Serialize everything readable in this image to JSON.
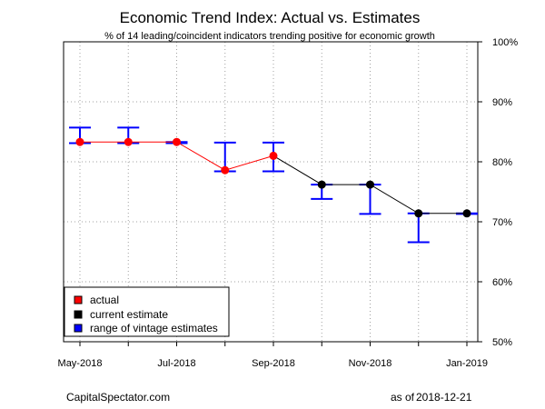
{
  "chart_data": {
    "type": "line",
    "title": "Economic Trend Index: Actual vs. Estimates",
    "subtitle": "% of 14 leading/coincident indicators trending positive for economic growth",
    "x": [
      "2018-05",
      "2018-06",
      "2018-07",
      "2018-08",
      "2018-09",
      "2018-10",
      "2018-11",
      "2018-12",
      "2019-01"
    ],
    "x_tick_labels": [
      "May-2018",
      "",
      "Jul-2018",
      "",
      "Sep-2018",
      "",
      "Nov-2018",
      "",
      "Jan-2019"
    ],
    "xlim": [
      "2018-05",
      "2019-01"
    ],
    "y_tick_values": [
      50,
      60,
      70,
      80,
      90,
      100
    ],
    "y_tick_labels": [
      "50%",
      "60%",
      "70%",
      "80%",
      "90%",
      "100%"
    ],
    "ylim": [
      50,
      100
    ],
    "y_axis_side": "right",
    "grid": true,
    "series": [
      {
        "name": "actual",
        "color": "#ff0000",
        "values": [
          83.3,
          83.3,
          83.3,
          78.6,
          81.0,
          null,
          null,
          null,
          null
        ]
      },
      {
        "name": "current estimate",
        "color": "#000000",
        "values": [
          null,
          null,
          null,
          null,
          null,
          76.2,
          76.2,
          71.4,
          71.4
        ]
      }
    ],
    "ranges": {
      "name": "range of vintage estimates",
      "color": "#0000ff",
      "low": [
        83.1,
        83.1,
        83.1,
        78.4,
        78.4,
        73.8,
        71.3,
        66.6,
        71.3
      ],
      "high": [
        85.7,
        85.7,
        83.3,
        83.2,
        83.2,
        76.2,
        76.2,
        71.4,
        71.4
      ]
    },
    "legend": {
      "position": "bottom-left",
      "entries": [
        "actual",
        "current estimate",
        "range of vintage estimates"
      ]
    }
  },
  "footer": {
    "source": "CapitalSpectator.com",
    "date_prefix": "as of",
    "date_value": "2018-12-21"
  }
}
